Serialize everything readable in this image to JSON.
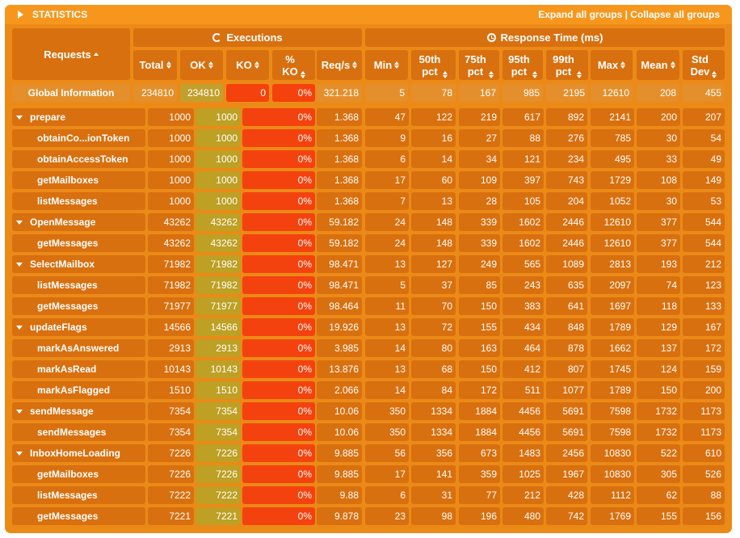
{
  "header": {
    "title": "STATISTICS",
    "expand_label": "Expand all groups",
    "separator": " | ",
    "collapse_label": "Collapse all groups"
  },
  "table": {
    "requests_label": "Requests",
    "executions_label": "Executions",
    "response_label": "Response Time (ms)",
    "columns": [
      {
        "line1": "Total",
        "line2": ""
      },
      {
        "line1": "OK",
        "line2": ""
      },
      {
        "line1": "KO",
        "line2": ""
      },
      {
        "line1": "%",
        "line2": "KO"
      },
      {
        "line1": "Req/s",
        "line2": ""
      },
      {
        "line1": "Min",
        "line2": ""
      },
      {
        "line1": "50th",
        "line2": "pct"
      },
      {
        "line1": "75th",
        "line2": "pct"
      },
      {
        "line1": "95th",
        "line2": "pct"
      },
      {
        "line1": "99th",
        "line2": "pct"
      },
      {
        "line1": "Max",
        "line2": ""
      },
      {
        "line1": "Mean",
        "line2": ""
      },
      {
        "line1": "Std",
        "line2": "Dev"
      }
    ],
    "global": {
      "name": "Global Information",
      "values": [
        "234810",
        "234810",
        "0",
        "0%",
        "321.218",
        "5",
        "78",
        "167",
        "985",
        "2195",
        "12610",
        "208",
        "455"
      ]
    },
    "rows": [
      {
        "name": "prepare",
        "group": true,
        "values": [
          "1000",
          "1000",
          "0",
          "0%",
          "1.368",
          "47",
          "122",
          "219",
          "617",
          "892",
          "2141",
          "200",
          "207"
        ]
      },
      {
        "name": "obtainCo...ionToken",
        "group": false,
        "values": [
          "1000",
          "1000",
          "0",
          "0%",
          "1.368",
          "9",
          "16",
          "27",
          "88",
          "276",
          "785",
          "30",
          "54"
        ]
      },
      {
        "name": "obtainAccessToken",
        "group": false,
        "values": [
          "1000",
          "1000",
          "0",
          "0%",
          "1.368",
          "6",
          "14",
          "34",
          "121",
          "234",
          "495",
          "33",
          "49"
        ]
      },
      {
        "name": "getMailboxes",
        "group": false,
        "values": [
          "1000",
          "1000",
          "0",
          "0%",
          "1.368",
          "17",
          "60",
          "109",
          "397",
          "743",
          "1729",
          "108",
          "149"
        ]
      },
      {
        "name": "listMessages",
        "group": false,
        "values": [
          "1000",
          "1000",
          "0",
          "0%",
          "1.368",
          "7",
          "13",
          "28",
          "105",
          "204",
          "1052",
          "30",
          "53"
        ]
      },
      {
        "name": "OpenMessage",
        "group": true,
        "values": [
          "43262",
          "43262",
          "0",
          "0%",
          "59.182",
          "24",
          "148",
          "339",
          "1602",
          "2446",
          "12610",
          "377",
          "544"
        ]
      },
      {
        "name": "getMessages",
        "group": false,
        "values": [
          "43262",
          "43262",
          "0",
          "0%",
          "59.182",
          "24",
          "148",
          "339",
          "1602",
          "2446",
          "12610",
          "377",
          "544"
        ]
      },
      {
        "name": "SelectMailbox",
        "group": true,
        "values": [
          "71982",
          "71982",
          "0",
          "0%",
          "98.471",
          "13",
          "127",
          "249",
          "565",
          "1089",
          "2813",
          "193",
          "212"
        ]
      },
      {
        "name": "listMessages",
        "group": false,
        "values": [
          "71982",
          "71982",
          "0",
          "0%",
          "98.471",
          "5",
          "37",
          "85",
          "243",
          "635",
          "2097",
          "74",
          "123"
        ]
      },
      {
        "name": "getMessages",
        "group": false,
        "values": [
          "71977",
          "71977",
          "0",
          "0%",
          "98.464",
          "11",
          "70",
          "150",
          "383",
          "641",
          "1697",
          "118",
          "133"
        ]
      },
      {
        "name": "updateFlags",
        "group": true,
        "values": [
          "14566",
          "14566",
          "0",
          "0%",
          "19.926",
          "13",
          "72",
          "155",
          "434",
          "848",
          "1789",
          "129",
          "167"
        ]
      },
      {
        "name": "markAsAnswered",
        "group": false,
        "values": [
          "2913",
          "2913",
          "0",
          "0%",
          "3.985",
          "14",
          "80",
          "163",
          "464",
          "878",
          "1662",
          "137",
          "172"
        ]
      },
      {
        "name": "markAsRead",
        "group": false,
        "values": [
          "10143",
          "10143",
          "0",
          "0%",
          "13.876",
          "13",
          "68",
          "150",
          "412",
          "807",
          "1745",
          "124",
          "159"
        ]
      },
      {
        "name": "markAsFlagged",
        "group": false,
        "values": [
          "1510",
          "1510",
          "0",
          "0%",
          "2.066",
          "14",
          "84",
          "172",
          "511",
          "1077",
          "1789",
          "150",
          "200"
        ]
      },
      {
        "name": "sendMessage",
        "group": true,
        "values": [
          "7354",
          "7354",
          "0",
          "0%",
          "10.06",
          "350",
          "1334",
          "1884",
          "4456",
          "5691",
          "7598",
          "1732",
          "1173"
        ]
      },
      {
        "name": "sendMessages",
        "group": false,
        "values": [
          "7354",
          "7354",
          "0",
          "0%",
          "10.06",
          "350",
          "1334",
          "1884",
          "4456",
          "5691",
          "7598",
          "1732",
          "1173"
        ]
      },
      {
        "name": "InboxHomeLoading",
        "group": true,
        "values": [
          "7226",
          "7226",
          "0",
          "0%",
          "9.885",
          "56",
          "356",
          "673",
          "1483",
          "2456",
          "10830",
          "522",
          "610"
        ]
      },
      {
        "name": "getMailboxes",
        "group": false,
        "values": [
          "7226",
          "7226",
          "0",
          "0%",
          "9.885",
          "17",
          "141",
          "359",
          "1025",
          "1967",
          "10830",
          "305",
          "526"
        ]
      },
      {
        "name": "listMessages",
        "group": false,
        "values": [
          "7222",
          "7222",
          "0",
          "0%",
          "9.88",
          "6",
          "31",
          "77",
          "212",
          "428",
          "1112",
          "62",
          "88"
        ]
      },
      {
        "name": "getMessages",
        "group": false,
        "values": [
          "7221",
          "7221",
          "0",
          "0%",
          "9.878",
          "23",
          "98",
          "196",
          "480",
          "742",
          "1769",
          "155",
          "156"
        ]
      }
    ]
  },
  "colors": {
    "panel": "#eb8a17",
    "header": "#f7961c",
    "cell": "#d8700f",
    "ok": "#bda024",
    "ko": "#f4420e"
  },
  "icons": {
    "header_toggle": "triangle-right-icon",
    "group_toggle": "triangle-down-icon",
    "executions": "refresh-icon",
    "response_time": "clock-icon",
    "sort": "sort-icon"
  }
}
